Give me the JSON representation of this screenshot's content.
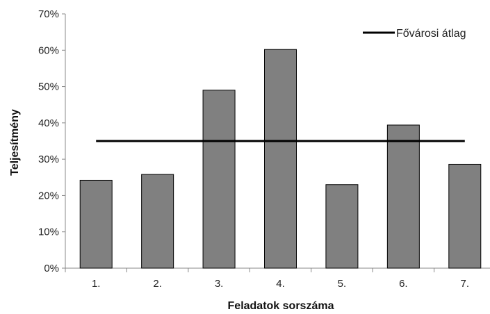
{
  "chart_data": {
    "type": "bar",
    "categories": [
      "1.",
      "2.",
      "3.",
      "4.",
      "5.",
      "6.",
      "7."
    ],
    "series": [
      {
        "values": [
          24.2,
          25.8,
          49.0,
          60.2,
          23.0,
          39.4,
          28.6
        ],
        "color": "#808080"
      }
    ],
    "reference_line": {
      "name": "Fővárosi átlag",
      "value": 35.0,
      "color": "#000000"
    },
    "xlabel": "Feladatok sorszáma",
    "ylabel": "Teljesítmény",
    "ylim": [
      0,
      70
    ],
    "yticks": [
      0,
      10,
      20,
      30,
      40,
      50,
      60,
      70
    ],
    "ytick_labels": [
      "0%",
      "10%",
      "20%",
      "30%",
      "40%",
      "50%",
      "60%",
      "70%"
    ],
    "grid": false,
    "legend_position": "top-right"
  }
}
